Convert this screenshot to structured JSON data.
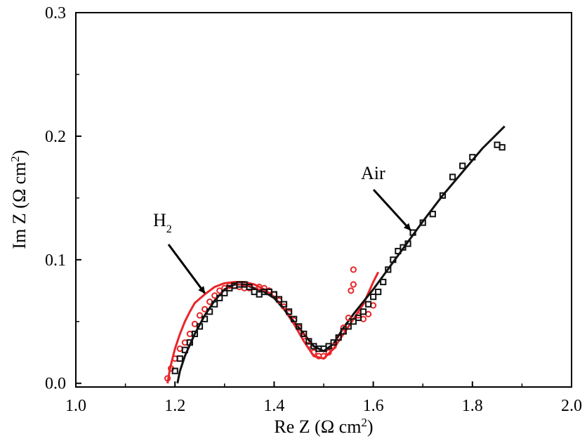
{
  "chart_data": {
    "type": "scatter",
    "title": "",
    "xlabel": "Re Z (Ω cm",
    "xlabel_sup": "2",
    "xlabel_tail": ")",
    "ylabel": "Im Z (Ω cm",
    "ylabel_sup": "2",
    "ylabel_tail": ")",
    "xlim": [
      1.0,
      2.0
    ],
    "ylim": [
      -0.003,
      0.3
    ],
    "xticks": [
      "1.0",
      "1.2",
      "1.4",
      "1.6",
      "1.8",
      "2.0"
    ],
    "xtick_values": [
      1.0,
      1.2,
      1.4,
      1.6,
      1.8,
      2.0
    ],
    "yticks": [
      "0.0",
      "0.1",
      "0.2",
      "0.3"
    ],
    "ytick_values": [
      0.0,
      0.1,
      0.2,
      0.3
    ],
    "grid": false,
    "annotations": [
      {
        "text": "H",
        "sub": "2",
        "points_to": [
          1.26,
          0.073
        ]
      },
      {
        "text": "Air",
        "sub": "",
        "points_to": [
          1.675,
          0.124
        ]
      }
    ],
    "series": [
      {
        "marker": "circle",
        "color": "#e8262a",
        "points": [
          [
            1.185,
            0.004
          ],
          [
            1.192,
            0.012
          ],
          [
            1.2,
            0.02
          ],
          [
            1.21,
            0.028
          ],
          [
            1.22,
            0.033
          ],
          [
            1.23,
            0.04
          ],
          [
            1.24,
            0.048
          ],
          [
            1.25,
            0.055
          ],
          [
            1.26,
            0.06
          ],
          [
            1.27,
            0.066
          ],
          [
            1.28,
            0.071
          ],
          [
            1.29,
            0.075
          ],
          [
            1.3,
            0.077
          ],
          [
            1.31,
            0.079
          ],
          [
            1.32,
            0.079
          ],
          [
            1.33,
            0.078
          ],
          [
            1.34,
            0.077
          ],
          [
            1.35,
            0.077
          ],
          [
            1.36,
            0.078
          ],
          [
            1.37,
            0.078
          ],
          [
            1.38,
            0.077
          ],
          [
            1.39,
            0.075
          ],
          [
            1.4,
            0.072
          ],
          [
            1.41,
            0.067
          ],
          [
            1.42,
            0.062
          ],
          [
            1.43,
            0.057
          ],
          [
            1.44,
            0.051
          ],
          [
            1.45,
            0.045
          ],
          [
            1.46,
            0.038
          ],
          [
            1.47,
            0.031
          ],
          [
            1.48,
            0.025
          ],
          [
            1.49,
            0.022
          ],
          [
            1.5,
            0.022
          ],
          [
            1.51,
            0.025
          ],
          [
            1.52,
            0.03
          ],
          [
            1.53,
            0.037
          ],
          [
            1.54,
            0.045
          ],
          [
            1.55,
            0.053
          ],
          [
            1.555,
            0.075
          ],
          [
            1.56,
            0.08
          ],
          [
            1.56,
            0.092
          ],
          [
            1.57,
            0.055
          ],
          [
            1.58,
            0.052
          ],
          [
            1.59,
            0.056
          ],
          [
            1.6,
            0.063
          ]
        ]
      },
      {
        "marker": "square",
        "color": "#111111",
        "points": [
          [
            1.2,
            0.01
          ],
          [
            1.21,
            0.02
          ],
          [
            1.22,
            0.027
          ],
          [
            1.23,
            0.033
          ],
          [
            1.24,
            0.04
          ],
          [
            1.25,
            0.046
          ],
          [
            1.26,
            0.052
          ],
          [
            1.27,
            0.058
          ],
          [
            1.28,
            0.064
          ],
          [
            1.29,
            0.069
          ],
          [
            1.3,
            0.073
          ],
          [
            1.31,
            0.077
          ],
          [
            1.32,
            0.079
          ],
          [
            1.33,
            0.08
          ],
          [
            1.34,
            0.08
          ],
          [
            1.35,
            0.078
          ],
          [
            1.36,
            0.074
          ],
          [
            1.37,
            0.072
          ],
          [
            1.38,
            0.074
          ],
          [
            1.39,
            0.074
          ],
          [
            1.4,
            0.072
          ],
          [
            1.41,
            0.068
          ],
          [
            1.42,
            0.064
          ],
          [
            1.43,
            0.058
          ],
          [
            1.44,
            0.052
          ],
          [
            1.45,
            0.046
          ],
          [
            1.46,
            0.04
          ],
          [
            1.47,
            0.034
          ],
          [
            1.48,
            0.03
          ],
          [
            1.49,
            0.028
          ],
          [
            1.5,
            0.028
          ],
          [
            1.51,
            0.03
          ],
          [
            1.52,
            0.033
          ],
          [
            1.53,
            0.037
          ],
          [
            1.54,
            0.042
          ],
          [
            1.55,
            0.046
          ],
          [
            1.56,
            0.05
          ],
          [
            1.57,
            0.053
          ],
          [
            1.58,
            0.058
          ],
          [
            1.59,
            0.064
          ],
          [
            1.6,
            0.07
          ],
          [
            1.61,
            0.074
          ],
          [
            1.62,
            0.082
          ],
          [
            1.63,
            0.092
          ],
          [
            1.64,
            0.1
          ],
          [
            1.65,
            0.107
          ],
          [
            1.66,
            0.11
          ],
          [
            1.67,
            0.113
          ],
          [
            1.68,
            0.122
          ],
          [
            1.7,
            0.13
          ],
          [
            1.72,
            0.137
          ],
          [
            1.74,
            0.152
          ],
          [
            1.76,
            0.167
          ],
          [
            1.78,
            0.176
          ],
          [
            1.8,
            0.183
          ],
          [
            1.85,
            0.193
          ],
          [
            1.86,
            0.191
          ]
        ]
      }
    ],
    "fits": [
      {
        "color": "#e8262a",
        "points": [
          [
            1.185,
            0.0
          ],
          [
            1.19,
            0.012
          ],
          [
            1.2,
            0.028
          ],
          [
            1.21,
            0.04
          ],
          [
            1.22,
            0.05
          ],
          [
            1.23,
            0.058
          ],
          [
            1.24,
            0.065
          ],
          [
            1.26,
            0.072
          ],
          [
            1.28,
            0.078
          ],
          [
            1.3,
            0.081
          ],
          [
            1.32,
            0.082
          ],
          [
            1.34,
            0.082
          ],
          [
            1.36,
            0.08
          ],
          [
            1.38,
            0.076
          ],
          [
            1.4,
            0.07
          ],
          [
            1.42,
            0.06
          ],
          [
            1.44,
            0.048
          ],
          [
            1.46,
            0.034
          ],
          [
            1.48,
            0.022
          ],
          [
            1.5,
            0.02
          ],
          [
            1.52,
            0.028
          ],
          [
            1.54,
            0.04
          ],
          [
            1.56,
            0.052
          ],
          [
            1.58,
            0.064
          ],
          [
            1.6,
            0.082
          ],
          [
            1.61,
            0.09
          ]
        ]
      },
      {
        "color": "#111111",
        "points": [
          [
            1.205,
            0.0
          ],
          [
            1.21,
            0.01
          ],
          [
            1.22,
            0.022
          ],
          [
            1.24,
            0.04
          ],
          [
            1.26,
            0.055
          ],
          [
            1.28,
            0.067
          ],
          [
            1.3,
            0.076
          ],
          [
            1.32,
            0.08
          ],
          [
            1.34,
            0.08
          ],
          [
            1.36,
            0.077
          ],
          [
            1.38,
            0.074
          ],
          [
            1.4,
            0.069
          ],
          [
            1.42,
            0.06
          ],
          [
            1.44,
            0.05
          ],
          [
            1.46,
            0.04
          ],
          [
            1.48,
            0.03
          ],
          [
            1.5,
            0.026
          ],
          [
            1.52,
            0.032
          ],
          [
            1.54,
            0.045
          ],
          [
            1.56,
            0.056
          ],
          [
            1.58,
            0.066
          ],
          [
            1.6,
            0.076
          ],
          [
            1.62,
            0.087
          ],
          [
            1.66,
            0.109
          ],
          [
            1.7,
            0.131
          ],
          [
            1.74,
            0.152
          ],
          [
            1.78,
            0.171
          ],
          [
            1.82,
            0.19
          ],
          [
            1.865,
            0.208
          ]
        ]
      }
    ]
  }
}
